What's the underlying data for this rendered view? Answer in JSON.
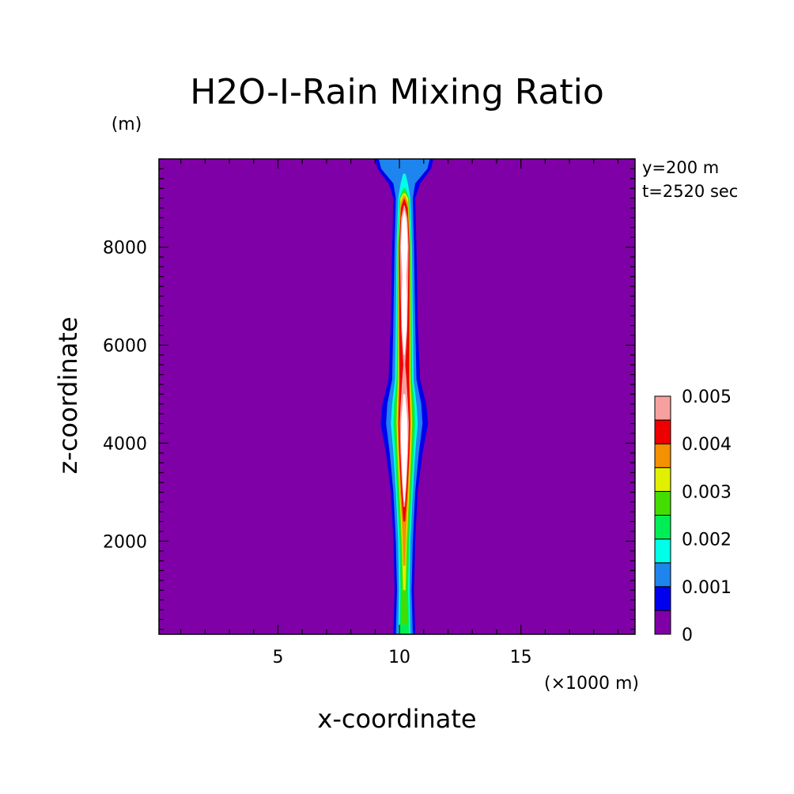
{
  "chart_data": {
    "type": "heatmap",
    "title": "H2O-I-Rain Mixing Ratio",
    "xlabel": "x-coordinate",
    "ylabel": "z-coordinate",
    "x_unit": "(×1000 m)",
    "y_unit": "(m)",
    "annotations": [
      "y=200 m",
      "t=2520 sec"
    ],
    "xlim": [
      0.1,
      19.7
    ],
    "ylim": [
      100,
      9800
    ],
    "x_ticks": [
      5,
      10,
      15
    ],
    "y_ticks": [
      2000,
      4000,
      6000,
      8000
    ],
    "x_minor_step": 1,
    "y_minor_step": 200,
    "grid": false,
    "legend_position": "right",
    "colorbar": {
      "levels": [
        0,
        0.0005,
        0.001,
        0.0015,
        0.002,
        0.0025,
        0.003,
        0.0035,
        0.004,
        0.0045,
        0.005
      ],
      "labels": [
        "0",
        "0.001",
        "0.002",
        "0.003",
        "0.004",
        "0.005"
      ],
      "colors": [
        "#7f00a6",
        "#0000ee",
        "#1e84ee",
        "#00ffe8",
        "#00ee55",
        "#44dd00",
        "#e0f000",
        "#f59000",
        "#ee0000",
        "#f7a0a0"
      ]
    },
    "background_color": "#7f00a6",
    "contours": [
      {
        "level": 0.0005,
        "color": "#0000ee",
        "half_width": [
          [
            100,
            0.45
          ],
          [
            1000,
            0.4
          ],
          [
            2000,
            0.45
          ],
          [
            3000,
            0.55
          ],
          [
            3800,
            0.75
          ],
          [
            4400,
            0.98
          ],
          [
            4800,
            0.9
          ],
          [
            5300,
            0.65
          ],
          [
            6500,
            0.55
          ],
          [
            8000,
            0.5
          ],
          [
            9000,
            0.45
          ],
          [
            9300,
            0.65
          ],
          [
            9600,
            1.1
          ],
          [
            9800,
            1.2
          ]
        ]
      },
      {
        "level": 0.001,
        "color": "#1e84ee",
        "half_width": [
          [
            100,
            0.35
          ],
          [
            1000,
            0.3
          ],
          [
            2000,
            0.35
          ],
          [
            3000,
            0.45
          ],
          [
            3800,
            0.6
          ],
          [
            4400,
            0.75
          ],
          [
            4800,
            0.7
          ],
          [
            5300,
            0.5
          ],
          [
            6500,
            0.45
          ],
          [
            8000,
            0.4
          ],
          [
            9000,
            0.35
          ],
          [
            9300,
            0.45
          ],
          [
            9600,
            0.95
          ],
          [
            9800,
            1.05
          ]
        ]
      },
      {
        "level": 0.0015,
        "color": "#00ffe8",
        "half_width": [
          [
            100,
            0.25
          ],
          [
            1000,
            0.22
          ],
          [
            2000,
            0.25
          ],
          [
            3000,
            0.35
          ],
          [
            3800,
            0.45
          ],
          [
            4400,
            0.55
          ],
          [
            4800,
            0.5
          ],
          [
            5300,
            0.38
          ],
          [
            6500,
            0.35
          ],
          [
            8000,
            0.32
          ],
          [
            9000,
            0.25
          ],
          [
            9300,
            0.15
          ],
          [
            9500,
            0.05
          ]
        ]
      },
      {
        "level": 0.002,
        "color": "#00ee55",
        "half_width": [
          [
            100,
            0.2
          ],
          [
            1000,
            0.16
          ],
          [
            2000,
            0.2
          ],
          [
            3000,
            0.3
          ],
          [
            3800,
            0.38
          ],
          [
            4400,
            0.45
          ],
          [
            4800,
            0.42
          ],
          [
            5300,
            0.32
          ],
          [
            6500,
            0.3
          ],
          [
            8000,
            0.28
          ],
          [
            9000,
            0.2
          ],
          [
            9200,
            0.05
          ]
        ]
      },
      {
        "level": 0.0025,
        "color": "#44dd00",
        "half_width": [
          [
            300,
            0.12
          ],
          [
            1000,
            0.1
          ],
          [
            2000,
            0.15
          ],
          [
            3000,
            0.25
          ],
          [
            3800,
            0.32
          ],
          [
            4400,
            0.38
          ],
          [
            4800,
            0.35
          ],
          [
            5300,
            0.28
          ],
          [
            6500,
            0.27
          ],
          [
            8000,
            0.25
          ],
          [
            9000,
            0.18
          ],
          [
            9150,
            0.04
          ]
        ]
      },
      {
        "level": 0.003,
        "color": "#e0f000",
        "half_width": [
          [
            1000,
            0.05
          ],
          [
            2000,
            0.1
          ],
          [
            3000,
            0.2
          ],
          [
            3800,
            0.28
          ],
          [
            4400,
            0.32
          ],
          [
            4800,
            0.3
          ],
          [
            5300,
            0.25
          ],
          [
            6500,
            0.25
          ],
          [
            8000,
            0.24
          ],
          [
            9000,
            0.16
          ],
          [
            9100,
            0.04
          ]
        ]
      },
      {
        "level": 0.0035,
        "color": "#f59000",
        "half_width": [
          [
            1500,
            0.04
          ],
          [
            2200,
            0.08
          ],
          [
            3000,
            0.17
          ],
          [
            3800,
            0.24
          ],
          [
            4400,
            0.28
          ],
          [
            4800,
            0.26
          ],
          [
            5300,
            0.22
          ],
          [
            6500,
            0.23
          ],
          [
            8000,
            0.23
          ],
          [
            8900,
            0.15
          ],
          [
            9050,
            0.03
          ]
        ]
      },
      {
        "level": 0.004,
        "color": "#ee0000",
        "half_width": [
          [
            2400,
            0.04
          ],
          [
            3000,
            0.13
          ],
          [
            3800,
            0.21
          ],
          [
            4400,
            0.24
          ],
          [
            4800,
            0.22
          ],
          [
            5300,
            0.2
          ],
          [
            6500,
            0.21
          ],
          [
            8000,
            0.22
          ],
          [
            8800,
            0.14
          ],
          [
            8980,
            0.02
          ]
        ]
      },
      {
        "level": 0.0045,
        "color": "#f7a0a0",
        "half_width": [
          [
            2700,
            0.03
          ],
          [
            3200,
            0.1
          ],
          [
            3800,
            0.16
          ],
          [
            4400,
            0.19
          ],
          [
            4800,
            0.15
          ],
          [
            5300,
            0.09
          ],
          [
            5600,
            0.04
          ]
        ]
      },
      {
        "level": 0.0045,
        "color": "#f7a0a0",
        "half_width": [
          [
            5500,
            0.03
          ],
          [
            6300,
            0.12
          ],
          [
            7000,
            0.15
          ],
          [
            8000,
            0.18
          ],
          [
            8600,
            0.13
          ],
          [
            8850,
            0.02
          ]
        ]
      },
      {
        "level": 0.005,
        "color": "#ffffff",
        "half_width": [
          [
            2800,
            0.02
          ],
          [
            3400,
            0.09
          ],
          [
            4100,
            0.14
          ],
          [
            4500,
            0.12
          ],
          [
            5000,
            0.04
          ]
        ]
      },
      {
        "level": 0.005,
        "color": "#ffffff",
        "half_width": [
          [
            5800,
            0.02
          ],
          [
            6400,
            0.1
          ],
          [
            7000,
            0.11
          ],
          [
            7400,
            0.08
          ],
          [
            8000,
            0.14
          ],
          [
            8500,
            0.1
          ],
          [
            8750,
            0.01
          ]
        ]
      }
    ],
    "center_x": 10.2
  }
}
